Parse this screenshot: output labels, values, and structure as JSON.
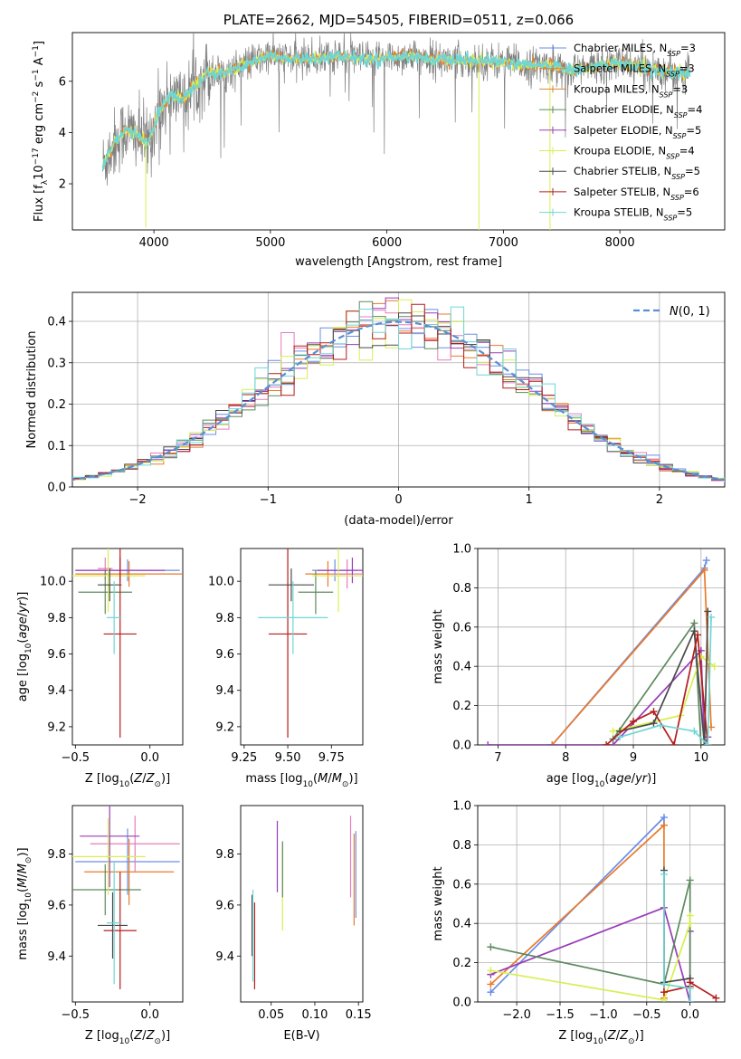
{
  "colors": {
    "Chabrier MILES": "#6a8ee6",
    "Salpeter MILES": "#e97a2b",
    "Kroupa MILES": "#d9823b",
    "Chabrier ELODIE": "#5e8a5e",
    "Salpeter ELODIE": "#9a3bb8",
    "Kroupa ELODIE": "#d7ef52",
    "Chabrier STELIB": "#4a4a4a",
    "Salpeter STELIB": "#b51c1c",
    "Kroupa STELIB": "#6fd6d6",
    "pink": "#e87cb8",
    "data": "#808080"
  },
  "chart_data": [
    {
      "id": "spectrum",
      "type": "line",
      "title": "PLATE=2662, MJD=54505, FIBERID=0511, z=0.066",
      "xlabel": "wavelength [Angstrom, rest frame]",
      "ylabel": "Flux [fλ10⁻¹⁷ erg cm⁻² s⁻¹ A⁻¹]",
      "xlim": [
        3300,
        8900
      ],
      "ylim": [
        0.2,
        7.9
      ],
      "xticks": [
        4000,
        5000,
        6000,
        7000,
        8000
      ],
      "yticks": [
        2,
        4,
        6
      ],
      "continuum": {
        "x": [
          3550,
          3650,
          3750,
          3850,
          3950,
          4050,
          4150,
          4250,
          4350,
          4450,
          4600,
          4800,
          5000,
          5200,
          5400,
          5600,
          5800,
          6000,
          6200,
          6400,
          6600,
          6800,
          7000,
          7200,
          7400,
          7600,
          7800,
          8000,
          8200,
          8400,
          8600
        ],
        "y": [
          2.6,
          3.5,
          4.1,
          3.9,
          3.6,
          4.9,
          5.5,
          5.3,
          5.9,
          6.3,
          6.3,
          6.7,
          7.0,
          6.85,
          6.9,
          7.0,
          6.85,
          6.9,
          7.0,
          6.85,
          6.8,
          6.8,
          6.75,
          6.6,
          6.65,
          6.4,
          6.6,
          6.7,
          6.5,
          6.4,
          6.3
        ]
      },
      "legend": [
        {
          "imf": "Chabrier",
          "lib": "MILES",
          "nssp": "3"
        },
        {
          "imf": "Salpeter",
          "lib": "MILES",
          "nssp": "3"
        },
        {
          "imf": "Kroupa",
          "lib": "MILES",
          "nssp": "3"
        },
        {
          "imf": "Chabrier",
          "lib": "ELODIE",
          "nssp": "4"
        },
        {
          "imf": "Salpeter",
          "lib": "ELODIE",
          "nssp": "5"
        },
        {
          "imf": "Kroupa",
          "lib": "ELODIE",
          "nssp": "4"
        },
        {
          "imf": "Chabrier",
          "lib": "STELIB",
          "nssp": "5"
        },
        {
          "imf": "Salpeter",
          "lib": "STELIB",
          "nssp": "6"
        },
        {
          "imf": "Kroupa",
          "lib": "STELIB",
          "nssp": "5"
        }
      ]
    },
    {
      "id": "residuals",
      "type": "histogram",
      "xlabel": "(data-model)/error",
      "ylabel": "Normed distribution",
      "xlim": [
        -2.5,
        2.5
      ],
      "ylim": [
        0,
        0.47
      ],
      "xticks": [
        -2,
        -1,
        0,
        1,
        2
      ],
      "yticks": [
        0.0,
        0.1,
        0.2,
        0.3,
        0.4
      ],
      "bin_width": 0.1,
      "normal_curve_label": "N(0,1)",
      "grid": true
    },
    {
      "id": "age-vs-Z",
      "type": "errorbar",
      "xlabel": "Z [log10(Z/Z⊙)]",
      "ylabel": "age  [log10(age/yr)]",
      "xlim": [
        -0.52,
        0.22
      ],
      "ylim": [
        9.1,
        10.18
      ],
      "xticks": [
        -0.5,
        0.0
      ],
      "yticks": [
        9.2,
        9.4,
        9.6,
        9.8,
        10.0
      ],
      "points": [
        {
          "s": "Chabrier MILES",
          "x": -0.15,
          "xe": 0.35,
          "y": 10.06,
          "ye": 0.06
        },
        {
          "s": "Salpeter MILES",
          "x": -0.14,
          "xe": 0.36,
          "y": 10.04,
          "ye": 0.07
        },
        {
          "s": "pink",
          "x": -0.3,
          "xe": 0.05,
          "y": 10.07,
          "ye": 0.06
        },
        {
          "s": "Chabrier ELODIE",
          "x": -0.3,
          "xe": 0.18,
          "y": 9.94,
          "ye": 0.12
        },
        {
          "s": "Salpeter ELODIE",
          "x": -0.2,
          "xe": 0.3,
          "y": 10.06,
          "ye": 0.07
        },
        {
          "s": "Kroupa ELODIE",
          "x": -0.28,
          "xe": 0.25,
          "y": 10.03,
          "ye": 0.2
        },
        {
          "s": "Chabrier STELIB",
          "x": -0.27,
          "xe": 0.08,
          "y": 9.98,
          "ye": 0.09
        },
        {
          "s": "Salpeter STELIB",
          "x": -0.2,
          "xe": 0.11,
          "y": 9.71,
          "ye": 0.57
        },
        {
          "s": "Kroupa STELIB",
          "x": -0.24,
          "xe": 0.05,
          "y": 9.8,
          "ye": 0.2
        }
      ]
    },
    {
      "id": "age-vs-mass",
      "type": "errorbar",
      "xlabel": "mass [log10(M/M⊙)]",
      "ylabel": "",
      "xlim": [
        9.23,
        9.93
      ],
      "ylim": [
        9.1,
        10.18
      ],
      "xticks": [
        9.25,
        9.5,
        9.75
      ],
      "yticks": [
        9.2,
        9.4,
        9.6,
        9.8,
        10.0
      ],
      "points": [
        {
          "s": "Chabrier MILES",
          "x": 9.77,
          "xe": 0.13,
          "y": 10.06,
          "ye": 0.06
        },
        {
          "s": "Salpeter MILES",
          "x": 9.73,
          "xe": 0.13,
          "y": 10.04,
          "ye": 0.07
        },
        {
          "s": "pink",
          "x": 9.84,
          "xe": 0.1,
          "y": 10.04,
          "ye": 0.08
        },
        {
          "s": "Chabrier ELODIE",
          "x": 9.66,
          "xe": 0.1,
          "y": 9.94,
          "ye": 0.12
        },
        {
          "s": "Salpeter ELODIE",
          "x": 9.87,
          "xe": 0.2,
          "y": 10.06,
          "ye": 0.07
        },
        {
          "s": "Kroupa ELODIE",
          "x": 9.79,
          "xe": 0.15,
          "y": 10.03,
          "ye": 0.2
        },
        {
          "s": "Chabrier STELIB",
          "x": 9.52,
          "xe": 0.13,
          "y": 9.98,
          "ye": 0.09
        },
        {
          "s": "Salpeter STELIB",
          "x": 9.5,
          "xe": 0.11,
          "y": 9.71,
          "ye": 0.57
        },
        {
          "s": "Kroupa STELIB",
          "x": 9.53,
          "xe": 0.2,
          "y": 9.8,
          "ye": 0.2
        }
      ]
    },
    {
      "id": "weight-vs-age",
      "type": "line",
      "xlabel": "age  [log10(age/yr)]",
      "ylabel": "mass weight",
      "xlim": [
        6.7,
        10.35
      ],
      "ylim": [
        0,
        1.0
      ],
      "xticks": [
        7,
        8,
        9,
        10
      ],
      "yticks": [
        0.0,
        0.2,
        0.4,
        0.6,
        0.8,
        1.0
      ],
      "grid": true,
      "series": [
        {
          "s": "Chabrier MILES",
          "x": [
            7.8,
            10.05,
            10.08
          ],
          "y": [
            0.0,
            0.9,
            0.94
          ]
        },
        {
          "s": "Salpeter MILES",
          "x": [
            7.8,
            10.05,
            10.15
          ],
          "y": [
            0.0,
            0.89,
            0.09
          ]
        },
        {
          "s": "Salpeter ELODIE",
          "x": [
            6.85,
            8.7,
            10.0,
            10.05,
            10.1
          ],
          "y": [
            0.0,
            0.0,
            0.48,
            0.0,
            0.04
          ]
        },
        {
          "s": "Chabrier ELODIE",
          "x": [
            8.7,
            9.9,
            10.0,
            10.1
          ],
          "y": [
            0.03,
            0.62,
            0.0,
            0.0
          ]
        },
        {
          "s": "Kroupa ELODIE",
          "x": [
            8.7,
            9.7,
            10.0,
            10.2
          ],
          "y": [
            0.07,
            0.15,
            0.45,
            0.4
          ]
        },
        {
          "s": "Chabrier STELIB",
          "x": [
            8.8,
            9.3,
            9.9,
            10.05,
            10.1
          ],
          "y": [
            0.07,
            0.11,
            0.58,
            0.0,
            0.68
          ]
        },
        {
          "s": "Salpeter STELIB",
          "x": [
            8.6,
            9.0,
            9.3,
            9.6,
            9.95,
            10.1
          ],
          "y": [
            0.0,
            0.12,
            0.17,
            0.0,
            0.56,
            0.0
          ]
        },
        {
          "s": "Kroupa STELIB",
          "x": [
            8.8,
            9.4,
            9.9,
            10.1,
            10.15
          ],
          "y": [
            0.04,
            0.1,
            0.07,
            0.0,
            0.65
          ]
        }
      ]
    },
    {
      "id": "mass-vs-Z",
      "type": "errorbar",
      "xlabel": "Z [log10(Z/Z⊙)]",
      "ylabel": "mass [log10(M/M⊙)]",
      "xlim": [
        -0.52,
        0.22
      ],
      "ylim": [
        9.22,
        9.99
      ],
      "xticks": [
        -0.5,
        0.0
      ],
      "yticks": [
        9.4,
        9.6,
        9.8
      ],
      "points": [
        {
          "s": "Chabrier MILES",
          "x": -0.15,
          "xe": 0.35,
          "y": 9.77,
          "ye": 0.13
        },
        {
          "s": "Salpeter MILES",
          "x": -0.14,
          "xe": 0.3,
          "y": 9.73,
          "ye": 0.13
        },
        {
          "s": "pink",
          "x": -0.1,
          "xe": 0.3,
          "y": 9.84,
          "ye": 0.11
        },
        {
          "s": "Chabrier ELODIE",
          "x": -0.3,
          "xe": 0.24,
          "y": 9.66,
          "ye": 0.1
        },
        {
          "s": "Salpeter ELODIE",
          "x": -0.27,
          "xe": 0.2,
          "y": 9.87,
          "ye": 0.2
        },
        {
          "s": "Kroupa ELODIE",
          "x": -0.28,
          "xe": 0.25,
          "y": 9.79,
          "ye": 0.15
        },
        {
          "s": "Chabrier STELIB",
          "x": -0.25,
          "xe": 0.1,
          "y": 9.52,
          "ye": 0.13
        },
        {
          "s": "Salpeter STELIB",
          "x": -0.2,
          "xe": 0.11,
          "y": 9.5,
          "ye": 0.23
        },
        {
          "s": "Kroupa STELIB",
          "x": -0.24,
          "xe": 0.05,
          "y": 9.53,
          "ye": 0.24
        }
      ]
    },
    {
      "id": "mass-vs-EBV",
      "type": "errorbar",
      "xlabel": "E(B-V)",
      "ylabel": "",
      "xlim": [
        0.015,
        0.155
      ],
      "ylim": [
        9.22,
        9.99
      ],
      "xticks": [
        0.05,
        0.1,
        0.15
      ],
      "yticks": [
        9.4,
        9.6,
        9.8
      ],
      "points": [
        {
          "s": "Chabrier STELIB",
          "x": 0.028,
          "xe": 0,
          "y": 9.52,
          "ye": 0.12
        },
        {
          "s": "Kroupa STELIB",
          "x": 0.029,
          "xe": 0,
          "y": 9.48,
          "ye": 0.18
        },
        {
          "s": "Salpeter STELIB",
          "x": 0.031,
          "xe": 0,
          "y": 9.44,
          "ye": 0.17
        },
        {
          "s": "Salpeter ELODIE",
          "x": 0.057,
          "xe": 0,
          "y": 9.79,
          "ye": 0.14
        },
        {
          "s": "Kroupa ELODIE",
          "x": 0.063,
          "xe": 0,
          "y": 9.67,
          "ye": 0.17
        },
        {
          "s": "Chabrier ELODIE",
          "x": 0.063,
          "xe": 0,
          "y": 9.74,
          "ye": 0.11
        },
        {
          "s": "pink",
          "x": 0.141,
          "xe": 0,
          "y": 9.79,
          "ye": 0.16
        },
        {
          "s": "Salpeter MILES",
          "x": 0.145,
          "xe": 0,
          "y": 9.7,
          "ye": 0.18
        },
        {
          "s": "Chabrier MILES",
          "x": 0.147,
          "xe": 0,
          "y": 9.72,
          "ye": 0.17
        }
      ]
    },
    {
      "id": "weight-vs-Z",
      "type": "line",
      "xlabel": "Z [log10(Z/Z⊙)]",
      "ylabel": "mass weight",
      "xlim": [
        -2.45,
        0.4
      ],
      "ylim": [
        0,
        1.0
      ],
      "xticks": [
        -2.0,
        -1.5,
        -1.0,
        -0.5,
        0.0
      ],
      "yticks": [
        0.0,
        0.2,
        0.4,
        0.6,
        0.8,
        1.0
      ],
      "grid": true,
      "series": [
        {
          "s": "Chabrier MILES",
          "x": [
            -2.3,
            -0.3,
            -0.3
          ],
          "y": [
            0.05,
            0.94,
            0.9
          ]
        },
        {
          "s": "Salpeter MILES",
          "x": [
            -2.3,
            -0.3,
            -0.3
          ],
          "y": [
            0.09,
            0.9,
            0.02
          ]
        },
        {
          "s": "Salpeter ELODIE",
          "x": [
            -2.3,
            -0.3,
            0.0,
            0.0
          ],
          "y": [
            0.14,
            0.48,
            0.0,
            0.36
          ]
        },
        {
          "s": "Chabrier ELODIE",
          "x": [
            -2.3,
            -0.3,
            0.0,
            0.0
          ],
          "y": [
            0.28,
            0.09,
            0.62,
            0.0
          ]
        },
        {
          "s": "Kroupa ELODIE",
          "x": [
            -2.3,
            -0.3,
            0.0,
            0.0
          ],
          "y": [
            0.16,
            0.01,
            0.4,
            0.44
          ]
        },
        {
          "s": "Chabrier STELIB",
          "x": [
            -0.3,
            -0.3,
            0.0,
            0.0
          ],
          "y": [
            0.67,
            0.1,
            0.12,
            0.0
          ]
        },
        {
          "s": "Salpeter STELIB",
          "x": [
            -0.3,
            0.0,
            0.0,
            0.3
          ],
          "y": [
            0.05,
            0.08,
            0.1,
            0.02
          ]
        },
        {
          "s": "Kroupa STELIB",
          "x": [
            -0.3,
            -0.3,
            0.0,
            0.0
          ],
          "y": [
            0.65,
            0.09,
            0.07,
            0.0
          ]
        }
      ]
    }
  ]
}
